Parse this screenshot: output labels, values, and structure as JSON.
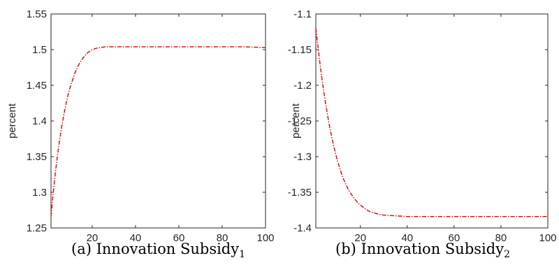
{
  "chart_data": [
    {
      "type": "line",
      "caption_prefix": "(a)",
      "caption_text": "Innovation Subsidy",
      "caption_sub": "1",
      "ylabel": "percent",
      "xlabel": "",
      "xlim": [
        1,
        100
      ],
      "ylim": [
        1.25,
        1.55
      ],
      "xticks": [
        20,
        40,
        60,
        80,
        100
      ],
      "yticks": [
        1.25,
        1.3,
        1.35,
        1.4,
        1.45,
        1.5,
        1.55
      ],
      "grid": false,
      "series": [
        {
          "color": "#e00000",
          "style": "dash-dot",
          "x": [
            1,
            2,
            3,
            4,
            5,
            6,
            7,
            8,
            9,
            10,
            11,
            12,
            13,
            14,
            15,
            16,
            17,
            18,
            19,
            20,
            22,
            24,
            26,
            28,
            30,
            35,
            40,
            50,
            60,
            70,
            80,
            90,
            100
          ],
          "y": [
            1.266,
            1.298,
            1.327,
            1.352,
            1.374,
            1.393,
            1.41,
            1.425,
            1.438,
            1.449,
            1.458,
            1.467,
            1.474,
            1.48,
            1.485,
            1.489,
            1.493,
            1.496,
            1.498,
            1.5,
            1.502,
            1.503,
            1.504,
            1.504,
            1.504,
            1.504,
            1.504,
            1.504,
            1.504,
            1.504,
            1.504,
            1.504,
            1.503
          ]
        }
      ]
    },
    {
      "type": "line",
      "caption_prefix": "(b)",
      "caption_text": "Innovation Subsidy",
      "caption_sub": "2",
      "ylabel": "percent",
      "xlabel": "",
      "xlim": [
        1,
        100
      ],
      "ylim": [
        -1.4,
        -1.1
      ],
      "xticks": [
        20,
        40,
        60,
        80,
        100
      ],
      "yticks": [
        -1.4,
        -1.35,
        -1.3,
        -1.25,
        -1.2,
        -1.15,
        -1.1
      ],
      "grid": false,
      "series": [
        {
          "color": "#e00000",
          "style": "dash-dot",
          "x": [
            1,
            2,
            3,
            4,
            5,
            6,
            7,
            8,
            9,
            10,
            11,
            12,
            13,
            14,
            15,
            16,
            17,
            18,
            19,
            20,
            22,
            24,
            26,
            28,
            30,
            35,
            40,
            50,
            60,
            70,
            80,
            90,
            100
          ],
          "y": [
            -1.12,
            -1.148,
            -1.176,
            -1.2,
            -1.222,
            -1.242,
            -1.26,
            -1.276,
            -1.29,
            -1.303,
            -1.314,
            -1.324,
            -1.333,
            -1.34,
            -1.347,
            -1.352,
            -1.357,
            -1.361,
            -1.365,
            -1.368,
            -1.373,
            -1.377,
            -1.379,
            -1.381,
            -1.382,
            -1.383,
            -1.384,
            -1.384,
            -1.384,
            -1.384,
            -1.384,
            -1.384,
            -1.384
          ]
        }
      ]
    }
  ]
}
